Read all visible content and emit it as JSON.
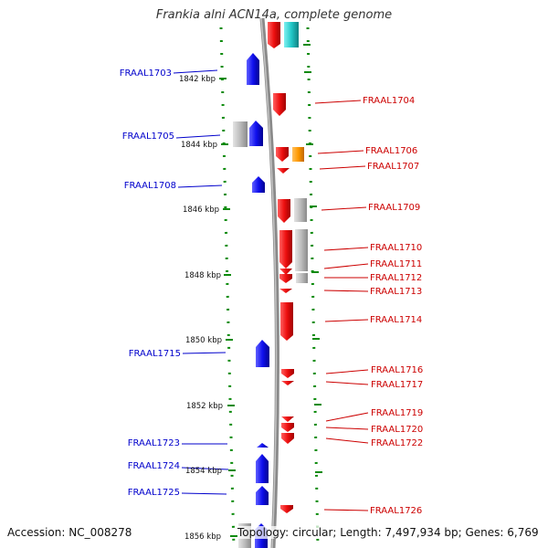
{
  "title": "Frankia alni ACN14a, complete genome",
  "footer": {
    "accession": "Accession: NC_008278",
    "summary": "Topology: circular; Length: 7,497,934 bp; Genes: 6,769"
  },
  "colors": {
    "forward_gene": "#1010ee",
    "reverse_gene": "#ee1010",
    "grey_gene": "#b8b8b8",
    "orange_gene": "#ff9900",
    "cyan_gene": "#22c8c8",
    "tick_green": "#006600",
    "left_label": "#0000cc",
    "right_label": "#cc0000",
    "backbone": "#888888"
  },
  "ruler": {
    "unit": "kbp",
    "labels": [
      "1842 kbp",
      "1844 kbp",
      "1846 kbp",
      "1848 kbp",
      "1850 kbp",
      "1852 kbp",
      "1854 kbp",
      "1856 kbp"
    ]
  },
  "left_labels": [
    "FRAAL1703",
    "FRAAL1705",
    "FRAAL1708",
    "FRAAL1715",
    "FRAAL1723",
    "FRAAL1724",
    "FRAAL1725"
  ],
  "right_labels": [
    "FRAAL1704",
    "FRAAL1706",
    "FRAAL1707",
    "FRAAL1709",
    "FRAAL1710",
    "FRAAL1711",
    "FRAAL1712",
    "FRAAL1713",
    "FRAAL1714",
    "FRAAL1716",
    "FRAAL1717",
    "FRAAL1719",
    "FRAAL1720",
    "FRAAL1722",
    "FRAAL1726"
  ]
}
